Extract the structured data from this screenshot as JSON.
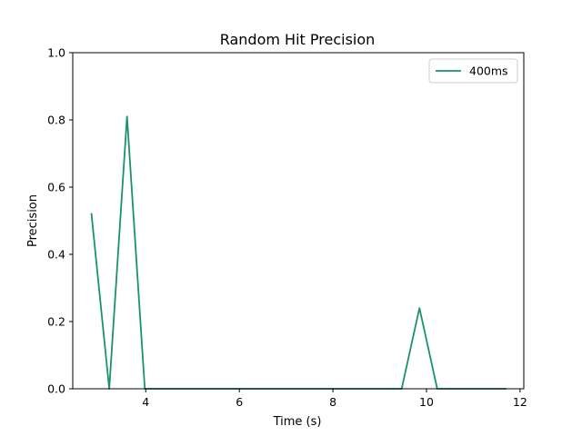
{
  "chart_data": {
    "type": "line",
    "title": "Random Hit Precision",
    "xlabel": "Time (s)",
    "ylabel": "Precision",
    "xlim": [
      2.44,
      12.08
    ],
    "ylim": [
      0,
      1
    ],
    "xticks": [
      4,
      6,
      8,
      10,
      12
    ],
    "yticks": [
      0.0,
      0.2,
      0.4,
      0.6,
      0.8,
      1.0
    ],
    "grid": false,
    "legend_position": "top-right",
    "series": [
      {
        "name": "400ms",
        "color": "#1a9466",
        "x": [
          2.84,
          3.22,
          3.6,
          3.98,
          4.36,
          4.74,
          5.12,
          5.5,
          5.88,
          6.26,
          6.64,
          7.02,
          7.4,
          7.78,
          8.16,
          8.54,
          8.92,
          9.3,
          9.47,
          9.85,
          10.23,
          10.61,
          10.99,
          11.37,
          11.69
        ],
        "y": [
          0.52,
          0.0,
          0.81,
          0.0,
          0.0,
          0.0,
          0.0,
          0.0,
          0.0,
          0.0,
          0.0,
          0.0,
          0.0,
          0.0,
          0.0,
          0.0,
          0.0,
          0.0,
          0.0,
          0.24,
          0.0,
          0.0,
          0.0,
          0.0,
          0.0
        ]
      }
    ]
  }
}
